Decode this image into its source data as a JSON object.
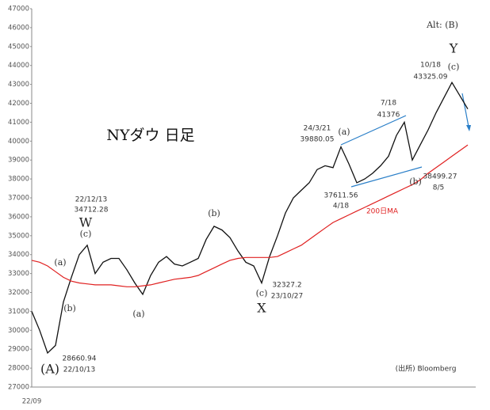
{
  "chart_data": {
    "type": "line",
    "title": "NYダウ 日足",
    "categories": [
      "22/09",
      null,
      null,
      null,
      null,
      null,
      null,
      null,
      null,
      null,
      null,
      null,
      null,
      null,
      null,
      null,
      null,
      null,
      null,
      null,
      null,
      null,
      null,
      null,
      null,
      null,
      null,
      null,
      null,
      null,
      null,
      null,
      null,
      null,
      null,
      null,
      null,
      null,
      null,
      null,
      null,
      null,
      null,
      null,
      null,
      null,
      null,
      null,
      null,
      null,
      null,
      null,
      null,
      null,
      null,
      null
    ],
    "series": [
      {
        "color": "#111111",
        "values": [
          31000,
          30000,
          28800,
          29200,
          31500,
          32800,
          34000,
          34500,
          33000,
          33600,
          33800,
          33800,
          33200,
          32500,
          31900,
          32900,
          33600,
          33900,
          33500,
          33400,
          33600,
          33800,
          34800,
          35500,
          35300,
          34900,
          34200,
          33600,
          33400,
          32500,
          33900,
          35000,
          36200,
          37000,
          37400,
          37800,
          38500,
          38700,
          38600,
          39700,
          38800,
          37800,
          38000,
          38300,
          38700,
          39200,
          40300,
          41000,
          39000,
          39800,
          40600,
          41500,
          42300,
          43100,
          42400,
          41700
        ]
      },
      {
        "color": "#e02020",
        "values": [
          33700,
          33600,
          33400,
          33100,
          32800,
          32600,
          32500,
          32450,
          32400,
          32400,
          32400,
          32350,
          32300,
          32300,
          32350,
          32400,
          32500,
          32600,
          32700,
          32750,
          32800,
          32900,
          33100,
          33300,
          33500,
          33700,
          33800,
          33850,
          33850,
          33850,
          33850,
          33900,
          34100,
          34300,
          34500,
          34800,
          35100,
          35400,
          35700,
          35900,
          36100,
          36300,
          36500,
          36700,
          36900,
          37100,
          37300,
          37500,
          37700,
          37950,
          38300,
          38600,
          38900,
          39200,
          39500,
          39800
        ]
      }
    ],
    "ylim": [
      27000,
      47000
    ],
    "yticks": [
      27000,
      28000,
      29000,
      30000,
      31000,
      32000,
      33000,
      34000,
      35000,
      36000,
      37000,
      38000,
      39000,
      40000,
      41000,
      42000,
      43000,
      44000,
      45000,
      46000,
      47000
    ],
    "grid": false,
    "annotations": [
      "Alt: (B)",
      "Y",
      "(c)",
      "10/18",
      "43325.09",
      "7/18",
      "41376",
      "24/3/21",
      "39880.05",
      "(a)",
      "22/12/13",
      "34712.28",
      "W",
      "(c)",
      "(b)",
      "37611.56",
      "4/18",
      "(b)",
      "38499.27",
      "8/5",
      "200日MA",
      "(a)",
      "(b)",
      "(a)",
      "32327.2",
      "23/10/27",
      "(c)",
      "X",
      "28660.94",
      "22/10/13",
      "(A)",
      "(出所) Bloomberg"
    ]
  }
}
